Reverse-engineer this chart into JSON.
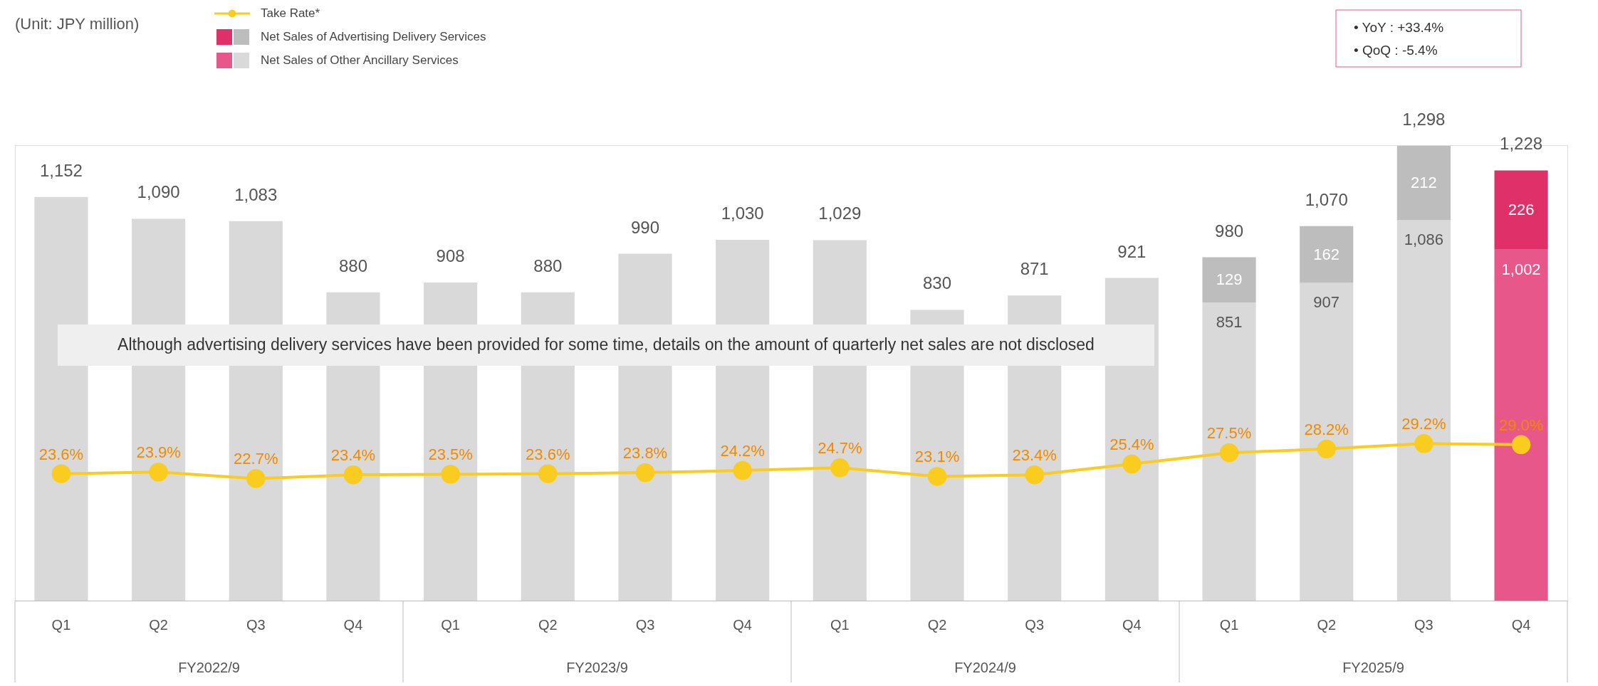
{
  "chart_data": {
    "type": "bar",
    "stacked": true,
    "tick_labels": "x",
    "legend": "top left",
    "categories": [
      "Q1",
      "Q2",
      "Q3",
      "Q4",
      "Q1",
      "Q2",
      "Q3",
      "Q4",
      "Q1",
      "Q2",
      "Q3",
      "Q4",
      "Q1",
      "Q2",
      "Q3",
      "Q4"
    ],
    "ylim": [
      0,
      1300
    ],
    "series": [
      {
        "name": "Net Sales of Other Ancillary Services",
        "color": "#d9d9d9",
        "values": [
          1152,
          1090,
          1083,
          880,
          908,
          880,
          990,
          1030,
          1029,
          830,
          871,
          921,
          851,
          907,
          1086,
          1002
        ],
        "colors": [
          "#d9d9d9",
          "#d9d9d9",
          "#d9d9d9",
          "#d9d9d9",
          "#d9d9d9",
          "#d9d9d9",
          "#d9d9d9",
          "#d9d9d9",
          "#d9d9d9",
          "#d9d9d9",
          "#d9d9d9",
          "#d9d9d9",
          "#d9d9d9",
          "#d9d9d9",
          "#d9d9d9",
          "#e8578a"
        ],
        "value_labels": [
          "1,152",
          "1,090",
          "1,083",
          "880",
          "908",
          "880",
          "990",
          "1,030",
          "1,029",
          "830",
          "871",
          "921",
          "851",
          "907",
          "1,086",
          "1,002"
        ]
      },
      {
        "name": "Net Sales of Advertising Delivery Services",
        "color": "#bdbdbd",
        "values": [
          null,
          null,
          null,
          null,
          null,
          null,
          null,
          null,
          null,
          null,
          null,
          null,
          129,
          162,
          212,
          226
        ],
        "colors": [
          "#bdbdbd",
          "#bdbdbd",
          "#bdbdbd",
          "#bdbdbd",
          "#bdbdbd",
          "#bdbdbd",
          "#bdbdbd",
          "#bdbdbd",
          "#bdbdbd",
          "#bdbdbd",
          "#bdbdbd",
          "#bdbdbd",
          "#bdbdbd",
          "#bdbdbd",
          "#bdbdbd",
          "#e0306a"
        ],
        "value_labels": [
          null,
          null,
          null,
          null,
          null,
          null,
          null,
          null,
          null,
          null,
          null,
          null,
          "129",
          "162",
          "212",
          "226"
        ]
      },
      {
        "name": "Take Rate*",
        "type": "line",
        "axis": "y2",
        "color": "#f9cc1f",
        "marker": "circle",
        "values": [
          23.6,
          23.9,
          22.7,
          23.4,
          23.5,
          23.6,
          23.8,
          24.2,
          24.7,
          23.1,
          23.4,
          25.4,
          27.5,
          28.2,
          29.2,
          29.0
        ],
        "value_labels": [
          "23.6%",
          "23.9%",
          "22.7%",
          "23.4%",
          "23.5%",
          "23.6%",
          "23.8%",
          "24.2%",
          "24.7%",
          "23.1%",
          "23.4%",
          "25.4%",
          "27.5%",
          "28.2%",
          "29.2%",
          "29.0%"
        ]
      }
    ],
    "totals": [
      null,
      null,
      null,
      null,
      null,
      null,
      null,
      null,
      null,
      null,
      null,
      null,
      "980",
      "1,070",
      "1,298",
      "1,228"
    ],
    "annotations": [
      "(Unit: JPY million)",
      "Although advertising delivery services have been provided for some time, details on the amount of quarterly net sales are not disclosed",
      "• YoY  : +33.4%",
      "• QoQ :    -5.4%",
      "FY2022/9",
      "FY2023/9",
      "FY2024/9",
      "FY2025/9"
    ]
  }
}
